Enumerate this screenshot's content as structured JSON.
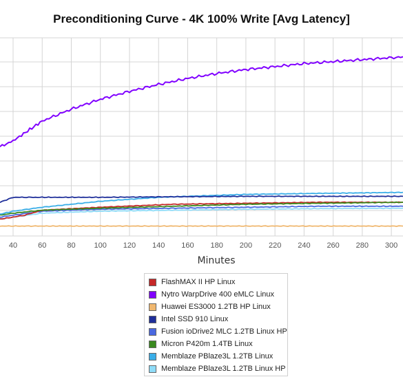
{
  "chart_data": {
    "type": "line",
    "title": "Preconditioning Curve - 4K 100% Write [Avg Latency]",
    "xlabel": "Minutes",
    "ylabel": "",
    "x_ticks": [
      "40",
      "60",
      "80",
      "100",
      "120",
      "140",
      "160",
      "180",
      "200",
      "220",
      "240",
      "260",
      "280",
      "300"
    ],
    "xlim": [
      31,
      308
    ],
    "ylim": [
      0,
      100
    ],
    "grid": true,
    "legend": "bottom-center",
    "series": [
      {
        "name": "FlashMAX II HP Linux",
        "color": "#c62828",
        "x": [
          31,
          40,
          48,
          60,
          100,
          150,
          200,
          250,
          308
        ],
        "y": [
          8.5,
          9.5,
          10.5,
          13,
          14.5,
          16,
          16.5,
          17,
          17
        ]
      },
      {
        "name": "Nytro WarpDrive 400 eMLC Linux",
        "color": "#8000ff",
        "x": [
          31,
          40,
          50,
          60,
          80,
          100,
          120,
          140,
          160,
          180,
          200,
          220,
          240,
          260,
          280,
          300,
          308
        ],
        "y": [
          45,
          48,
          53,
          58,
          64,
          69,
          73,
          76.5,
          79.5,
          82,
          84,
          85.5,
          87,
          88,
          89,
          90,
          90.5
        ]
      },
      {
        "name": "Huawei ES3000 1.2TB HP Linux",
        "color": "#f0b870",
        "x": [
          31,
          60,
          100,
          150,
          200,
          250,
          308
        ],
        "y": [
          5,
          5,
          5,
          5,
          5,
          5,
          5
        ]
      },
      {
        "name": "Intel SSD 910 Linux",
        "color": "#1f2f9a",
        "x": [
          31,
          40,
          60,
          100,
          150,
          200,
          250,
          308
        ],
        "y": [
          17,
          19.5,
          19.5,
          19.5,
          19.8,
          20,
          20,
          20
        ]
      },
      {
        "name": "Fusion ioDrive2 MLC 1.2TB Linux HP",
        "color": "#4a68e0",
        "x": [
          31,
          40,
          60,
          100,
          150,
          200,
          250,
          308
        ],
        "y": [
          9.5,
          10.5,
          12.5,
          13.5,
          14,
          14.5,
          15,
          15
        ]
      },
      {
        "name": "Micron P420m 1.4TB Linux",
        "color": "#3a8a1f",
        "x": [
          31,
          40,
          60,
          100,
          150,
          200,
          250,
          308
        ],
        "y": [
          10.5,
          11.5,
          13,
          14,
          15,
          16,
          16.5,
          17
        ]
      },
      {
        "name": "Memblaze PBlaze3L 1.2TB Linux",
        "color": "#3aaee8",
        "x": [
          31,
          40,
          60,
          80,
          100,
          120,
          140,
          160,
          180,
          200,
          250,
          308
        ],
        "y": [
          11,
          12.5,
          14.5,
          16,
          17.5,
          18.5,
          19.5,
          20,
          20.5,
          21,
          21.5,
          22
        ]
      },
      {
        "name": "Memblaze PBlaze3L 1.2TB Linux HP",
        "color": "#8fdcf8",
        "x": [
          31,
          40,
          60,
          100,
          150,
          200,
          250,
          308
        ],
        "y": [
          8.5,
          9.5,
          11.5,
          12.5,
          13,
          13.5,
          13.8,
          14
        ]
      }
    ]
  }
}
